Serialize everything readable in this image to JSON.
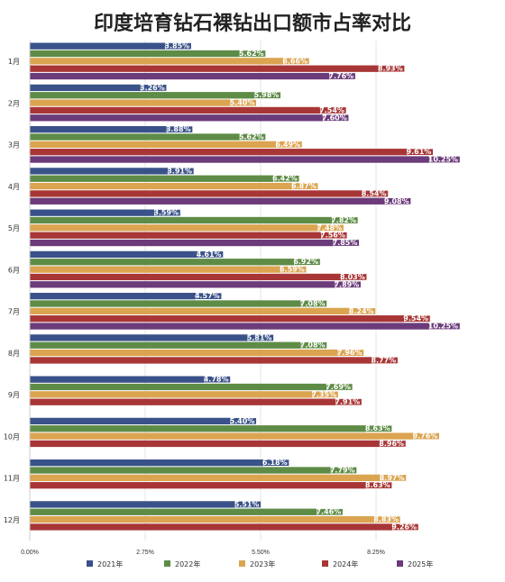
{
  "chart_data": {
    "type": "bar",
    "orientation": "horizontal",
    "title": "印度培育钻石裸钻出口额市占率对比",
    "categories": [
      "1月",
      "2月",
      "3月",
      "4月",
      "5月",
      "6月",
      "7月",
      "8月",
      "9月",
      "10月",
      "11月",
      "12月"
    ],
    "series": [
      {
        "name": "2021年",
        "color": "#3a5289",
        "values": [
          3.85,
          3.26,
          3.88,
          3.91,
          3.59,
          4.61,
          4.57,
          5.81,
          4.78,
          5.4,
          6.18,
          5.51
        ],
        "labels": [
          "3.85%",
          "3.26%",
          "3.88%",
          "3.91%",
          "3.59%",
          "4.61%",
          "4.57%",
          "5.81%",
          "4.78%",
          "5.40%",
          "6.18%",
          "5.51%"
        ]
      },
      {
        "name": "2022年",
        "color": "#5e8c47",
        "values": [
          5.62,
          5.98,
          5.62,
          6.42,
          7.82,
          6.92,
          7.08,
          7.08,
          7.69,
          8.63,
          7.79,
          7.46
        ],
        "labels": [
          "5.62%",
          "5.98%",
          "5.62%",
          "6.42%",
          "7.82%",
          "6.92%",
          "7.08%",
          "7.08%",
          "7.69%",
          "8.63%",
          "7.79%",
          "7.46%"
        ]
      },
      {
        "name": "2023年",
        "color": "#dba450",
        "values": [
          6.66,
          5.4,
          6.49,
          6.87,
          7.48,
          6.59,
          8.24,
          7.96,
          7.35,
          9.76,
          8.97,
          8.83
        ],
        "labels": [
          "6.66%",
          "5.40%",
          "6.49%",
          "6.87%",
          "7.48%",
          "6.59%",
          "8.24%",
          "7.96%",
          "7.35%",
          "9.76%",
          "8.97%",
          "8.83%"
        ]
      },
      {
        "name": "2024年",
        "color": "#a83636",
        "values": [
          8.93,
          7.54,
          9.61,
          8.54,
          7.56,
          8.03,
          9.54,
          8.77,
          7.91,
          8.96,
          8.63,
          9.26
        ],
        "labels": [
          "8.93%",
          "7.54%",
          "9.61%",
          "8.54%",
          "7.56%",
          "8.03%",
          "9.54%",
          "8.77%",
          "7.91%",
          "8.96%",
          "8.63%",
          "9.26%"
        ]
      },
      {
        "name": "2025年",
        "color": "#6b3b7a",
        "values": [
          7.76,
          7.6,
          10.25,
          9.08,
          7.85,
          7.89,
          10.25,
          null,
          null,
          null,
          null,
          null
        ],
        "labels": [
          "7.76%",
          "7.60%",
          "10.25%",
          "9.08%",
          "7.85%",
          "7.89%",
          "10.25%",
          null,
          null,
          null,
          null,
          null
        ]
      }
    ],
    "xlim": [
      0,
      11
    ],
    "xticks": [
      0,
      2.75,
      5.5,
      8.25
    ],
    "xtick_labels": [
      "0.00%",
      "2.75%",
      "5.50%",
      "8.25%"
    ],
    "grid": true,
    "legend_position": "bottom"
  }
}
